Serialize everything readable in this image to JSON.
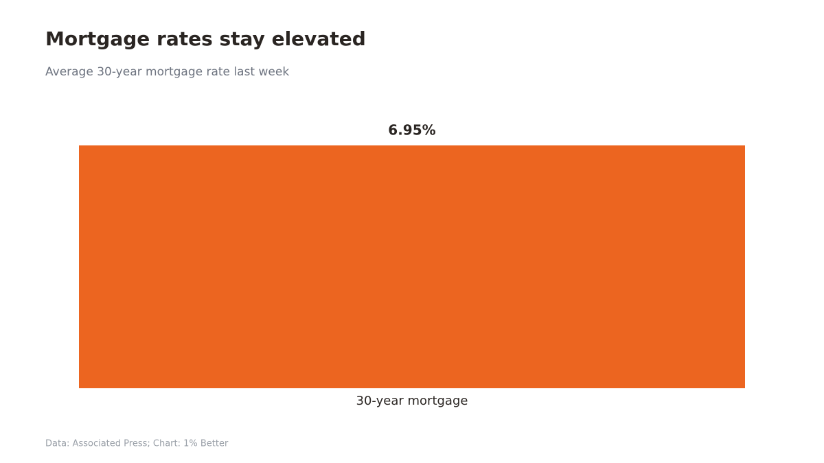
{
  "chart_data": {
    "type": "bar",
    "title": "Mortgage rates stay elevated",
    "subtitle": "Average 30-year mortgage rate last week",
    "categories": [
      "30-year mortgage"
    ],
    "values": [
      6.95
    ],
    "value_labels": [
      "6.95%"
    ],
    "color": "#ec6520",
    "source": "Data: Associated Press; Chart: 1% Better"
  }
}
